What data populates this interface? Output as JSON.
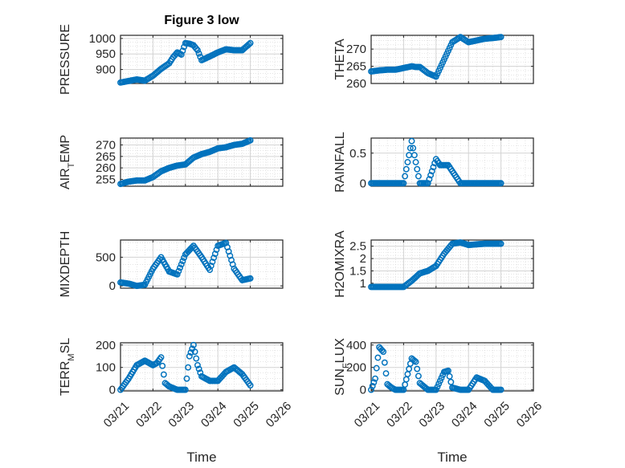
{
  "figure": {
    "title": "Figure 3 low"
  },
  "colors": {
    "series": "#0072BD",
    "grid": "#d3d3d3",
    "axis": "#262626",
    "background": "#ffffff"
  },
  "chart_data": [
    {
      "type": "scatter",
      "ylabel": "PRESSURE",
      "xlabel": "",
      "xlim": [
        "03/21",
        "03/25"
      ],
      "ylim": [
        855,
        1010
      ],
      "yticks": [
        900,
        950,
        1000
      ],
      "grid": true,
      "x": [
        "03/21 00:00",
        "03/21 06:00",
        "03/21 12:00",
        "03/21 18:00",
        "03/22 00:00",
        "03/22 06:00",
        "03/22 12:00",
        "03/22 15:00",
        "03/22 18:00",
        "03/22 21:00",
        "03/23 00:00",
        "03/23 03:00",
        "03/23 06:00",
        "03/23 09:00",
        "03/23 12:00",
        "03/23 18:00",
        "03/24 00:00",
        "03/24 06:00",
        "03/24 12:00",
        "03/24 18:00",
        "03/25 00:00"
      ],
      "y": [
        858,
        863,
        868,
        864,
        880,
        902,
        920,
        940,
        955,
        948,
        985,
        983,
        978,
        962,
        930,
        942,
        955,
        965,
        962,
        962,
        985
      ]
    },
    {
      "type": "scatter",
      "ylabel": "THETA",
      "xlabel": "",
      "xlim": [
        "03/21",
        "03/25"
      ],
      "ylim": [
        260,
        274
      ],
      "yticks": [
        260,
        265,
        270
      ],
      "grid": true,
      "x": [
        "03/21 00:00",
        "03/21 06:00",
        "03/21 12:00",
        "03/21 18:00",
        "03/22 00:00",
        "03/22 06:00",
        "03/22 09:00",
        "03/22 12:00",
        "03/22 18:00",
        "03/23 00:00",
        "03/23 06:00",
        "03/23 12:00",
        "03/23 18:00",
        "03/24 00:00",
        "03/24 06:00",
        "03/24 12:00",
        "03/24 18:00",
        "03/25 00:00"
      ],
      "y": [
        263.5,
        263.8,
        264,
        264,
        264.5,
        265,
        264.8,
        264.8,
        263,
        262,
        267,
        272,
        273.5,
        272,
        272.5,
        273,
        273.2,
        273.5
      ]
    },
    {
      "type": "scatter",
      "ylabel": "AIR_TEMP",
      "xlabel": "",
      "xlim": [
        "03/21",
        "03/25"
      ],
      "ylim": [
        252,
        273
      ],
      "yticks": [
        255,
        260,
        265,
        270
      ],
      "grid": true,
      "x": [
        "03/21 00:00",
        "03/21 06:00",
        "03/21 12:00",
        "03/21 18:00",
        "03/22 00:00",
        "03/22 06:00",
        "03/22 12:00",
        "03/22 18:00",
        "03/23 00:00",
        "03/23 06:00",
        "03/23 12:00",
        "03/23 18:00",
        "03/24 00:00",
        "03/24 06:00",
        "03/24 12:00",
        "03/24 18:00",
        "03/25 00:00"
      ],
      "y": [
        253,
        254,
        254.5,
        254.5,
        256,
        258.5,
        260,
        261,
        261.5,
        264.5,
        266,
        267,
        268.5,
        269,
        270,
        270.5,
        272
      ]
    },
    {
      "type": "scatter",
      "ylabel": "RAINFALL",
      "xlabel": "",
      "xlim": [
        "03/21",
        "03/25"
      ],
      "ylim": [
        -0.05,
        0.75
      ],
      "yticks": [
        0,
        0.5
      ],
      "grid": true,
      "x": [
        "03/21 00:00",
        "03/21 12:00",
        "03/22 00:00",
        "03/22 06:00",
        "03/22 12:00",
        "03/22 18:00",
        "03/23 00:00",
        "03/23 03:00",
        "03/23 06:00",
        "03/23 09:00",
        "03/23 12:00",
        "03/23 18:00",
        "03/24 00:00",
        "03/24 12:00",
        "03/25 00:00"
      ],
      "y": [
        0,
        0,
        0,
        0.7,
        0,
        0,
        0.4,
        0.3,
        0.3,
        0.3,
        0.2,
        0,
        0,
        0,
        0
      ]
    },
    {
      "type": "scatter",
      "ylabel": "MIXDEPTH",
      "xlabel": "",
      "xlim": [
        "03/21",
        "03/25"
      ],
      "ylim": [
        -40,
        800
      ],
      "yticks": [
        0,
        500
      ],
      "grid": true,
      "x": [
        "03/21 00:00",
        "03/21 06:00",
        "03/21 12:00",
        "03/21 18:00",
        "03/22 00:00",
        "03/22 06:00",
        "03/22 12:00",
        "03/22 18:00",
        "03/23 00:00",
        "03/23 06:00",
        "03/23 12:00",
        "03/23 18:00",
        "03/24 00:00",
        "03/24 06:00",
        "03/24 12:00",
        "03/24 18:00",
        "03/25 00:00"
      ],
      "y": [
        60,
        40,
        0,
        20,
        300,
        500,
        250,
        200,
        550,
        700,
        500,
        280,
        700,
        750,
        300,
        100,
        130
      ]
    },
    {
      "type": "scatter",
      "ylabel": "H2OMIXRA",
      "xlabel": "",
      "xlim": [
        "03/21",
        "03/25"
      ],
      "ylim": [
        0.8,
        2.75
      ],
      "yticks": [
        1,
        1.5,
        2,
        2.5
      ],
      "grid": true,
      "x": [
        "03/21 00:00",
        "03/21 12:00",
        "03/22 00:00",
        "03/22 06:00",
        "03/22 12:00",
        "03/22 18:00",
        "03/23 00:00",
        "03/23 06:00",
        "03/23 12:00",
        "03/23 18:00",
        "03/24 00:00",
        "03/24 12:00",
        "03/25 00:00"
      ],
      "y": [
        0.85,
        0.85,
        0.85,
        1.1,
        1.4,
        1.5,
        1.7,
        2.2,
        2.6,
        2.65,
        2.55,
        2.6,
        2.6
      ]
    },
    {
      "type": "scatter",
      "ylabel": "TERR_MSL",
      "xlabel": "Time",
      "xlim": [
        "03/21",
        "03/26"
      ],
      "ylim": [
        -5,
        210
      ],
      "yticks": [
        0,
        100,
        200
      ],
      "grid": true,
      "xticklabels": [
        "03/21",
        "03/22",
        "03/23",
        "03/24",
        "03/25",
        "03/26"
      ],
      "x": [
        "03/21 00:00",
        "03/21 06:00",
        "03/21 12:00",
        "03/21 18:00",
        "03/22 00:00",
        "03/22 03:00",
        "03/22 06:00",
        "03/22 09:00",
        "03/22 12:00",
        "03/22 18:00",
        "03/23 00:00",
        "03/23 03:00",
        "03/23 06:00",
        "03/23 09:00",
        "03/23 12:00",
        "03/23 18:00",
        "03/24 00:00",
        "03/24 06:00",
        "03/24 12:00",
        "03/24 18:00",
        "03/25 00:00"
      ],
      "y": [
        0,
        50,
        110,
        130,
        110,
        120,
        145,
        30,
        15,
        0,
        0,
        150,
        200,
        110,
        60,
        40,
        40,
        80,
        100,
        70,
        20
      ]
    },
    {
      "type": "scatter",
      "ylabel": "SUN_FLUX",
      "xlabel": "Time",
      "xlim": [
        "03/21",
        "03/26"
      ],
      "ylim": [
        -10,
        420
      ],
      "yticks": [
        0,
        200,
        400
      ],
      "grid": true,
      "xticklabels": [
        "03/21",
        "03/22",
        "03/23",
        "03/24",
        "03/25",
        "03/26"
      ],
      "x": [
        "03/21 00:00",
        "03/21 03:00",
        "03/21 06:00",
        "03/21 09:00",
        "03/21 12:00",
        "03/21 15:00",
        "03/21 18:00",
        "03/22 00:00",
        "03/22 06:00",
        "03/22 09:00",
        "03/22 12:00",
        "03/22 18:00",
        "03/23 00:00",
        "03/23 06:00",
        "03/23 09:00",
        "03/23 12:00",
        "03/23 18:00",
        "03/24 00:00",
        "03/24 06:00",
        "03/24 12:00",
        "03/24 18:00",
        "03/25 00:00"
      ],
      "y": [
        0,
        100,
        380,
        340,
        50,
        20,
        0,
        0,
        280,
        250,
        60,
        0,
        0,
        160,
        170,
        20,
        0,
        0,
        110,
        80,
        0,
        0
      ]
    }
  ]
}
